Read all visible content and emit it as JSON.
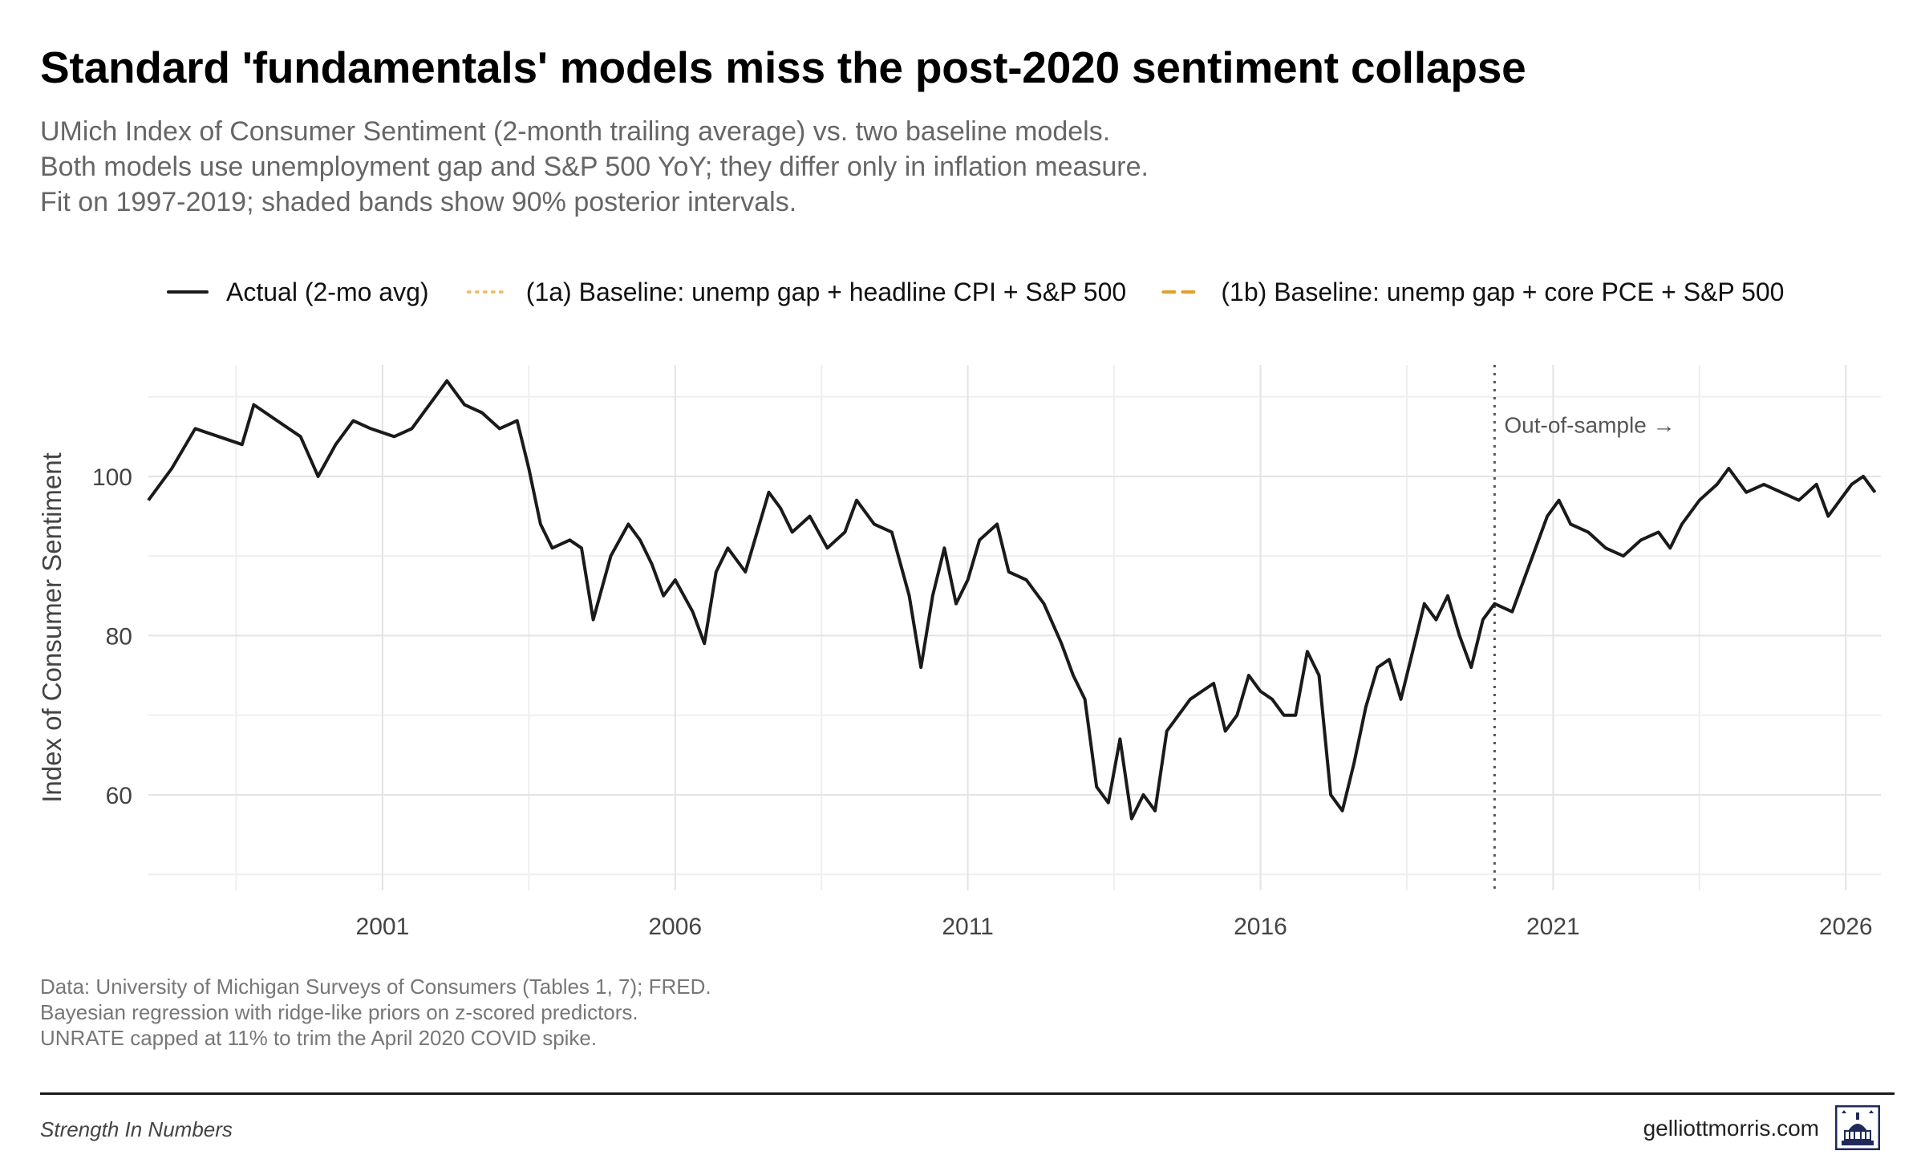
{
  "header": {
    "title": "Standard 'fundamentals' models miss the post-2020 sentiment collapse",
    "subtitle_lines": [
      "UMich Index of Consumer Sentiment (2-month trailing average) vs. two baseline models.",
      "Both models use unemployment gap and S&P 500 YoY; they differ only in inflation measure.",
      "Fit on 1997-2019; shaded bands show 90% posterior intervals."
    ]
  },
  "footer": {
    "caption_lines": [
      "Data: University of Michigan Surveys of Consumers (Tables 1, 7); FRED.",
      "Bayesian regression with ridge-like priors on z-scored predictors.",
      "UNRATE capped at 11% to trim the April 2020 COVID spike."
    ],
    "brand_left": "Strength In Numbers",
    "brand_right": "gelliottmorris.com",
    "logo_icon": "capitol-dome-icon"
  },
  "chart_data": {
    "type": "line",
    "title": "",
    "xlabel": "",
    "ylabel": "Index of Consumer Sentiment",
    "xlim": [
      1997.0,
      2026.6
    ],
    "ylim": [
      48,
      114
    ],
    "x_ticks": [
      2001,
      2006,
      2011,
      2016,
      2021,
      2026
    ],
    "y_ticks": [
      60,
      80,
      100
    ],
    "grid": true,
    "legend_position": "top",
    "annotation": {
      "text": "Out-of-sample →",
      "x": 2020.0
    },
    "colors": {
      "actual": "#1a1a1a",
      "model_1a": "#f2bf6e",
      "model_1b": "#e0a02a",
      "band": "#f7d79e",
      "grid": "#e3e3e3"
    },
    "series": [
      {
        "key": "actual",
        "name": "Actual (2-mo avg)",
        "style": "solid",
        "points": [
          [
            1997.0,
            97
          ],
          [
            1997.4,
            101
          ],
          [
            1997.8,
            106
          ],
          [
            1998.2,
            105
          ],
          [
            1998.6,
            104
          ],
          [
            1998.8,
            109
          ],
          [
            1999.2,
            107
          ],
          [
            1999.6,
            105
          ],
          [
            1999.9,
            100
          ],
          [
            2000.2,
            104
          ],
          [
            2000.5,
            107
          ],
          [
            2000.8,
            106
          ],
          [
            2001.2,
            105
          ],
          [
            2001.5,
            106
          ],
          [
            2001.9,
            110
          ],
          [
            2002.1,
            112
          ],
          [
            2002.4,
            109
          ],
          [
            2002.7,
            108
          ],
          [
            2003.0,
            106
          ],
          [
            2003.3,
            107
          ],
          [
            2003.5,
            101
          ],
          [
            2003.7,
            94
          ],
          [
            2003.9,
            91
          ],
          [
            2004.2,
            92
          ],
          [
            2004.4,
            91
          ],
          [
            2004.6,
            82
          ],
          [
            2004.9,
            90
          ],
          [
            2005.2,
            94
          ],
          [
            2005.4,
            92
          ],
          [
            2005.6,
            89
          ],
          [
            2005.8,
            85
          ],
          [
            2006.0,
            87
          ],
          [
            2006.3,
            83
          ],
          [
            2006.5,
            79
          ],
          [
            2006.7,
            88
          ],
          [
            2006.9,
            91
          ],
          [
            2007.2,
            88
          ],
          [
            2007.4,
            93
          ],
          [
            2007.6,
            98
          ],
          [
            2007.8,
            96
          ],
          [
            2008.0,
            93
          ],
          [
            2008.3,
            95
          ],
          [
            2008.6,
            91
          ],
          [
            2008.9,
            93
          ],
          [
            2009.1,
            97
          ],
          [
            2009.4,
            94
          ],
          [
            2009.7,
            93
          ],
          [
            2010.0,
            85
          ],
          [
            2010.2,
            76
          ],
          [
            2010.4,
            85
          ],
          [
            2010.6,
            91
          ],
          [
            2010.8,
            84
          ],
          [
            2011.0,
            87
          ],
          [
            2011.2,
            92
          ],
          [
            2011.5,
            94
          ],
          [
            2011.7,
            88
          ],
          [
            2012.0,
            87
          ],
          [
            2012.3,
            84
          ],
          [
            2012.6,
            79
          ],
          [
            2012.8,
            75
          ],
          [
            2013.0,
            72
          ],
          [
            2013.2,
            61
          ],
          [
            2013.4,
            59
          ],
          [
            2013.6,
            67
          ],
          [
            2013.8,
            57
          ],
          [
            2014.0,
            60
          ],
          [
            2014.2,
            58
          ],
          [
            2014.4,
            68
          ],
          [
            2014.6,
            70
          ],
          [
            2014.8,
            72
          ],
          [
            2015.0,
            73
          ],
          [
            2015.2,
            74
          ],
          [
            2015.4,
            68
          ],
          [
            2015.6,
            70
          ],
          [
            2015.8,
            75
          ],
          [
            2016.0,
            73
          ],
          [
            2016.2,
            72
          ],
          [
            2016.4,
            70
          ],
          [
            2016.6,
            70
          ],
          [
            2016.8,
            78
          ],
          [
            2017.0,
            75
          ],
          [
            2017.2,
            60
          ],
          [
            2017.4,
            58
          ],
          [
            2017.6,
            64
          ],
          [
            2017.8,
            71
          ],
          [
            2018.0,
            76
          ],
          [
            2018.2,
            77
          ],
          [
            2018.4,
            72
          ],
          [
            2018.6,
            78
          ],
          [
            2018.8,
            84
          ],
          [
            2019.0,
            82
          ],
          [
            2019.2,
            85
          ],
          [
            2019.4,
            80
          ],
          [
            2019.6,
            76
          ],
          [
            2019.8,
            82
          ],
          [
            2020.0,
            84
          ],
          [
            2020.3,
            83
          ],
          [
            2020.6,
            89
          ],
          [
            2020.9,
            95
          ],
          [
            2021.1,
            97
          ],
          [
            2021.3,
            94
          ],
          [
            2021.6,
            93
          ],
          [
            2021.9,
            91
          ],
          [
            2022.2,
            90
          ],
          [
            2022.5,
            92
          ],
          [
            2022.8,
            93
          ],
          [
            2023.0,
            91
          ],
          [
            2023.2,
            94
          ],
          [
            2023.5,
            97
          ],
          [
            2023.8,
            99
          ],
          [
            2024.0,
            101
          ],
          [
            2024.3,
            98
          ],
          [
            2024.6,
            99
          ],
          [
            2024.9,
            98
          ],
          [
            2025.2,
            97
          ],
          [
            2025.5,
            99
          ],
          [
            2025.7,
            95
          ],
          [
            2025.9,
            97
          ],
          [
            2026.1,
            99
          ],
          [
            2026.3,
            100
          ],
          [
            2026.5,
            98
          ]
        ]
      }
    ]
  }
}
